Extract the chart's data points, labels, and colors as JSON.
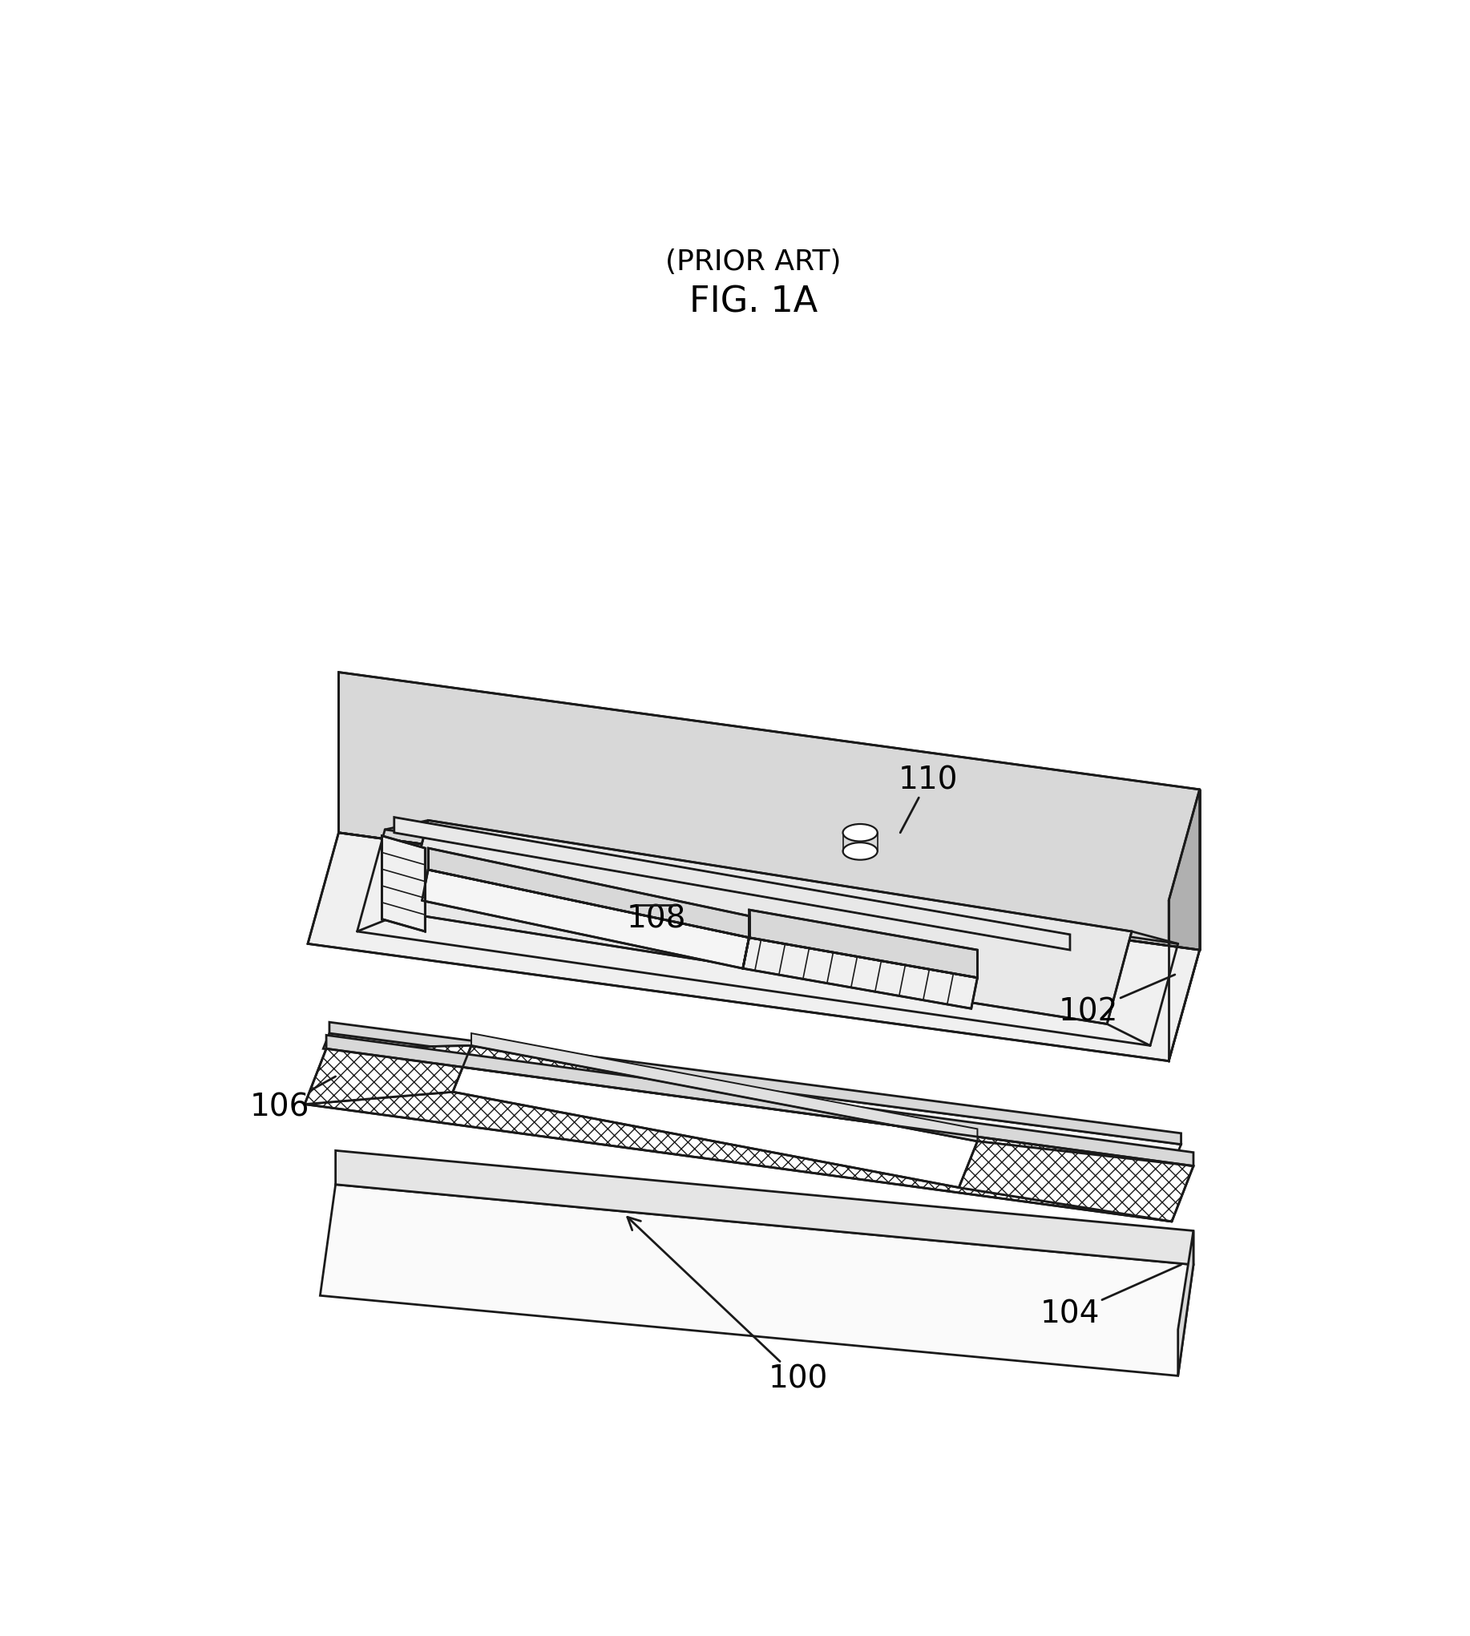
{
  "fig_label": "FIG. 1A",
  "fig_sublabel": "(PRIOR ART)",
  "background_color": "#ffffff",
  "line_color": "#1a1a1a",
  "line_width": 2.0,
  "label_fontsize": 28,
  "title_fontsize": 32,
  "subtitle_fontsize": 26
}
